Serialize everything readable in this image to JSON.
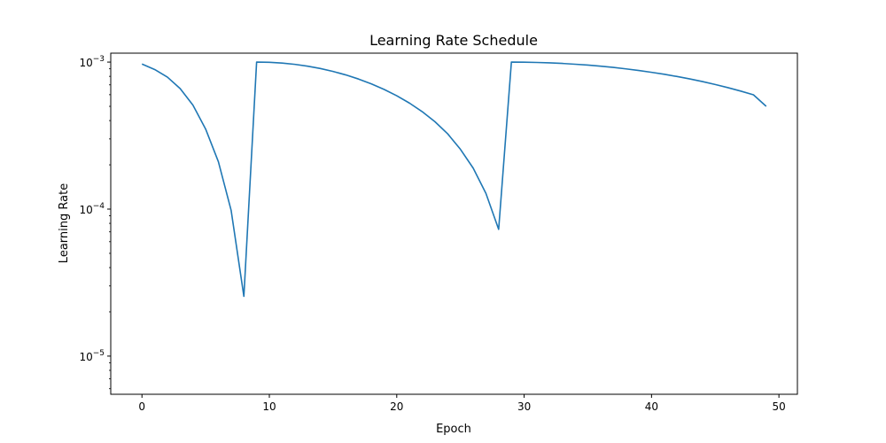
{
  "chart_data": {
    "type": "line",
    "title": "Learning Rate Schedule",
    "xlabel": "Epoch",
    "ylabel": "Learning Rate",
    "xlim": [
      -2.45,
      51.45
    ],
    "ylim": [
      5.5e-06,
      0.00115
    ],
    "yscale": "log",
    "grid": false,
    "x_ticks": [
      0,
      10,
      20,
      30,
      40,
      50
    ],
    "x_tick_labels": [
      "0",
      "10",
      "20",
      "30",
      "40",
      "50"
    ],
    "y_ticks": [
      1e-05,
      0.0001,
      0.001
    ],
    "y_tick_labels": [
      {
        "base": "10",
        "exp": "−5"
      },
      {
        "base": "10",
        "exp": "−4"
      },
      {
        "base": "10",
        "exp": "−3"
      }
    ],
    "series": [
      {
        "color": "#1f77b4",
        "x": [
          0,
          1,
          2,
          3,
          4,
          5,
          6,
          7,
          8,
          9,
          10,
          11,
          12,
          13,
          14,
          15,
          16,
          17,
          18,
          19,
          20,
          21,
          22,
          23,
          24,
          25,
          26,
          27,
          28,
          29,
          30,
          31,
          32,
          33,
          34,
          35,
          36,
          37,
          38,
          39,
          40,
          41,
          42,
          43,
          44,
          45,
          46,
          47,
          48,
          49
        ],
        "y": [
          0.00097,
          0.00089,
          0.00079,
          0.00066,
          0.00051,
          0.00035,
          0.00021,
          9.8e-05,
          2.55e-05,
          0.001,
          0.000997,
          0.000985,
          0.000965,
          0.000938,
          0.000904,
          0.000864,
          0.000818,
          0.000767,
          0.000711,
          0.000652,
          0.00059,
          0.000526,
          0.00046,
          0.000393,
          0.000325,
          0.000255,
          0.00019,
          0.000128,
          7.28e-05,
          0.001,
          0.000998,
          0.000994,
          0.000988,
          0.000979,
          0.000967,
          0.000954,
          0.000938,
          0.00092,
          0.000899,
          0.000877,
          0.000852,
          0.000826,
          0.000798,
          0.000768,
          0.000737,
          0.000704,
          0.00067,
          0.000635,
          0.000599,
          0.0005
        ]
      }
    ]
  }
}
